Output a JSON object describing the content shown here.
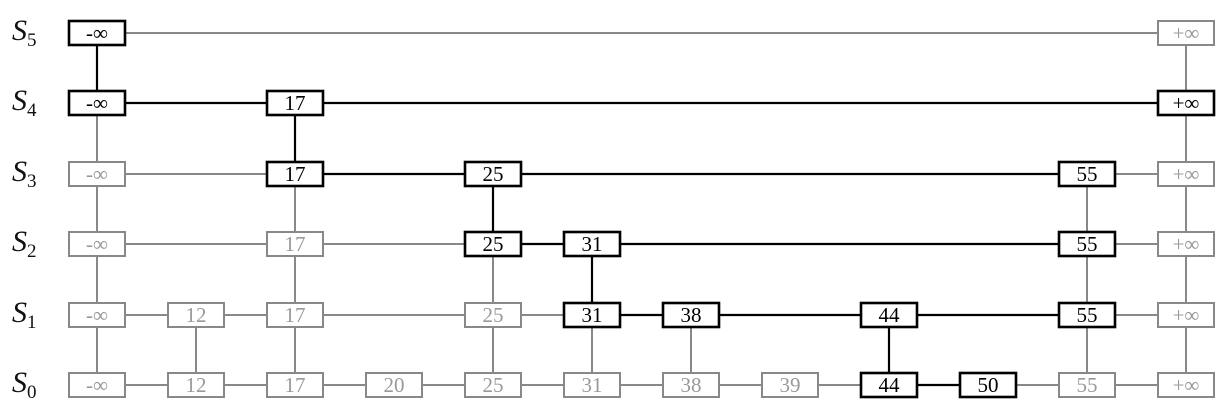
{
  "levels": [
    {
      "label": "S",
      "sub": "5"
    },
    {
      "label": "S",
      "sub": "4"
    },
    {
      "label": "S",
      "sub": "3"
    },
    {
      "label": "S",
      "sub": "2"
    },
    {
      "label": "S",
      "sub": "1"
    },
    {
      "label": "S",
      "sub": "0"
    }
  ],
  "columns": [
    "-∞",
    "12",
    "17",
    "20",
    "25",
    "31",
    "38",
    "39",
    "44",
    "50",
    "55",
    "+∞"
  ],
  "rows": [
    {
      "level": 5,
      "nodes": [
        {
          "col": 0,
          "hl": true
        },
        {
          "col": 11,
          "hl": false
        }
      ],
      "hl_edges": []
    },
    {
      "level": 4,
      "nodes": [
        {
          "col": 0,
          "hl": true
        },
        {
          "col": 2,
          "hl": true
        },
        {
          "col": 11,
          "hl": true
        }
      ],
      "hl_edges": [
        0,
        1
      ]
    },
    {
      "level": 3,
      "nodes": [
        {
          "col": 0,
          "hl": false
        },
        {
          "col": 2,
          "hl": true
        },
        {
          "col": 4,
          "hl": true
        },
        {
          "col": 10,
          "hl": true
        },
        {
          "col": 11,
          "hl": false
        }
      ],
      "hl_edges": [
        1,
        2
      ]
    },
    {
      "level": 2,
      "nodes": [
        {
          "col": 0,
          "hl": false
        },
        {
          "col": 2,
          "hl": false
        },
        {
          "col": 4,
          "hl": true
        },
        {
          "col": 5,
          "hl": true
        },
        {
          "col": 10,
          "hl": true
        },
        {
          "col": 11,
          "hl": false
        }
      ],
      "hl_edges": [
        2,
        3
      ]
    },
    {
      "level": 1,
      "nodes": [
        {
          "col": 0,
          "hl": false
        },
        {
          "col": 1,
          "hl": false
        },
        {
          "col": 2,
          "hl": false
        },
        {
          "col": 4,
          "hl": false
        },
        {
          "col": 5,
          "hl": true
        },
        {
          "col": 6,
          "hl": true
        },
        {
          "col": 8,
          "hl": true
        },
        {
          "col": 10,
          "hl": true
        },
        {
          "col": 11,
          "hl": false
        }
      ],
      "hl_edges": [
        4,
        5,
        6
      ]
    },
    {
      "level": 0,
      "nodes": [
        {
          "col": 0,
          "hl": false
        },
        {
          "col": 1,
          "hl": false
        },
        {
          "col": 2,
          "hl": false
        },
        {
          "col": 3,
          "hl": false
        },
        {
          "col": 4,
          "hl": false
        },
        {
          "col": 5,
          "hl": false
        },
        {
          "col": 6,
          "hl": false
        },
        {
          "col": 7,
          "hl": false
        },
        {
          "col": 8,
          "hl": true
        },
        {
          "col": 9,
          "hl": true
        },
        {
          "col": 10,
          "hl": false
        },
        {
          "col": 11,
          "hl": false
        }
      ],
      "hl_edges": [
        8
      ]
    }
  ],
  "hl_verticals": [
    {
      "col": 0,
      "from_level": 5,
      "to_level": 4
    },
    {
      "col": 2,
      "from_level": 4,
      "to_level": 3
    },
    {
      "col": 4,
      "from_level": 3,
      "to_level": 2
    },
    {
      "col": 5,
      "from_level": 2,
      "to_level": 1
    },
    {
      "col": 8,
      "from_level": 1,
      "to_level": 0
    }
  ],
  "colors": {
    "highlight": "#000000",
    "muted": "#888888",
    "muted_text": "#999999",
    "background": "#ffffff"
  }
}
